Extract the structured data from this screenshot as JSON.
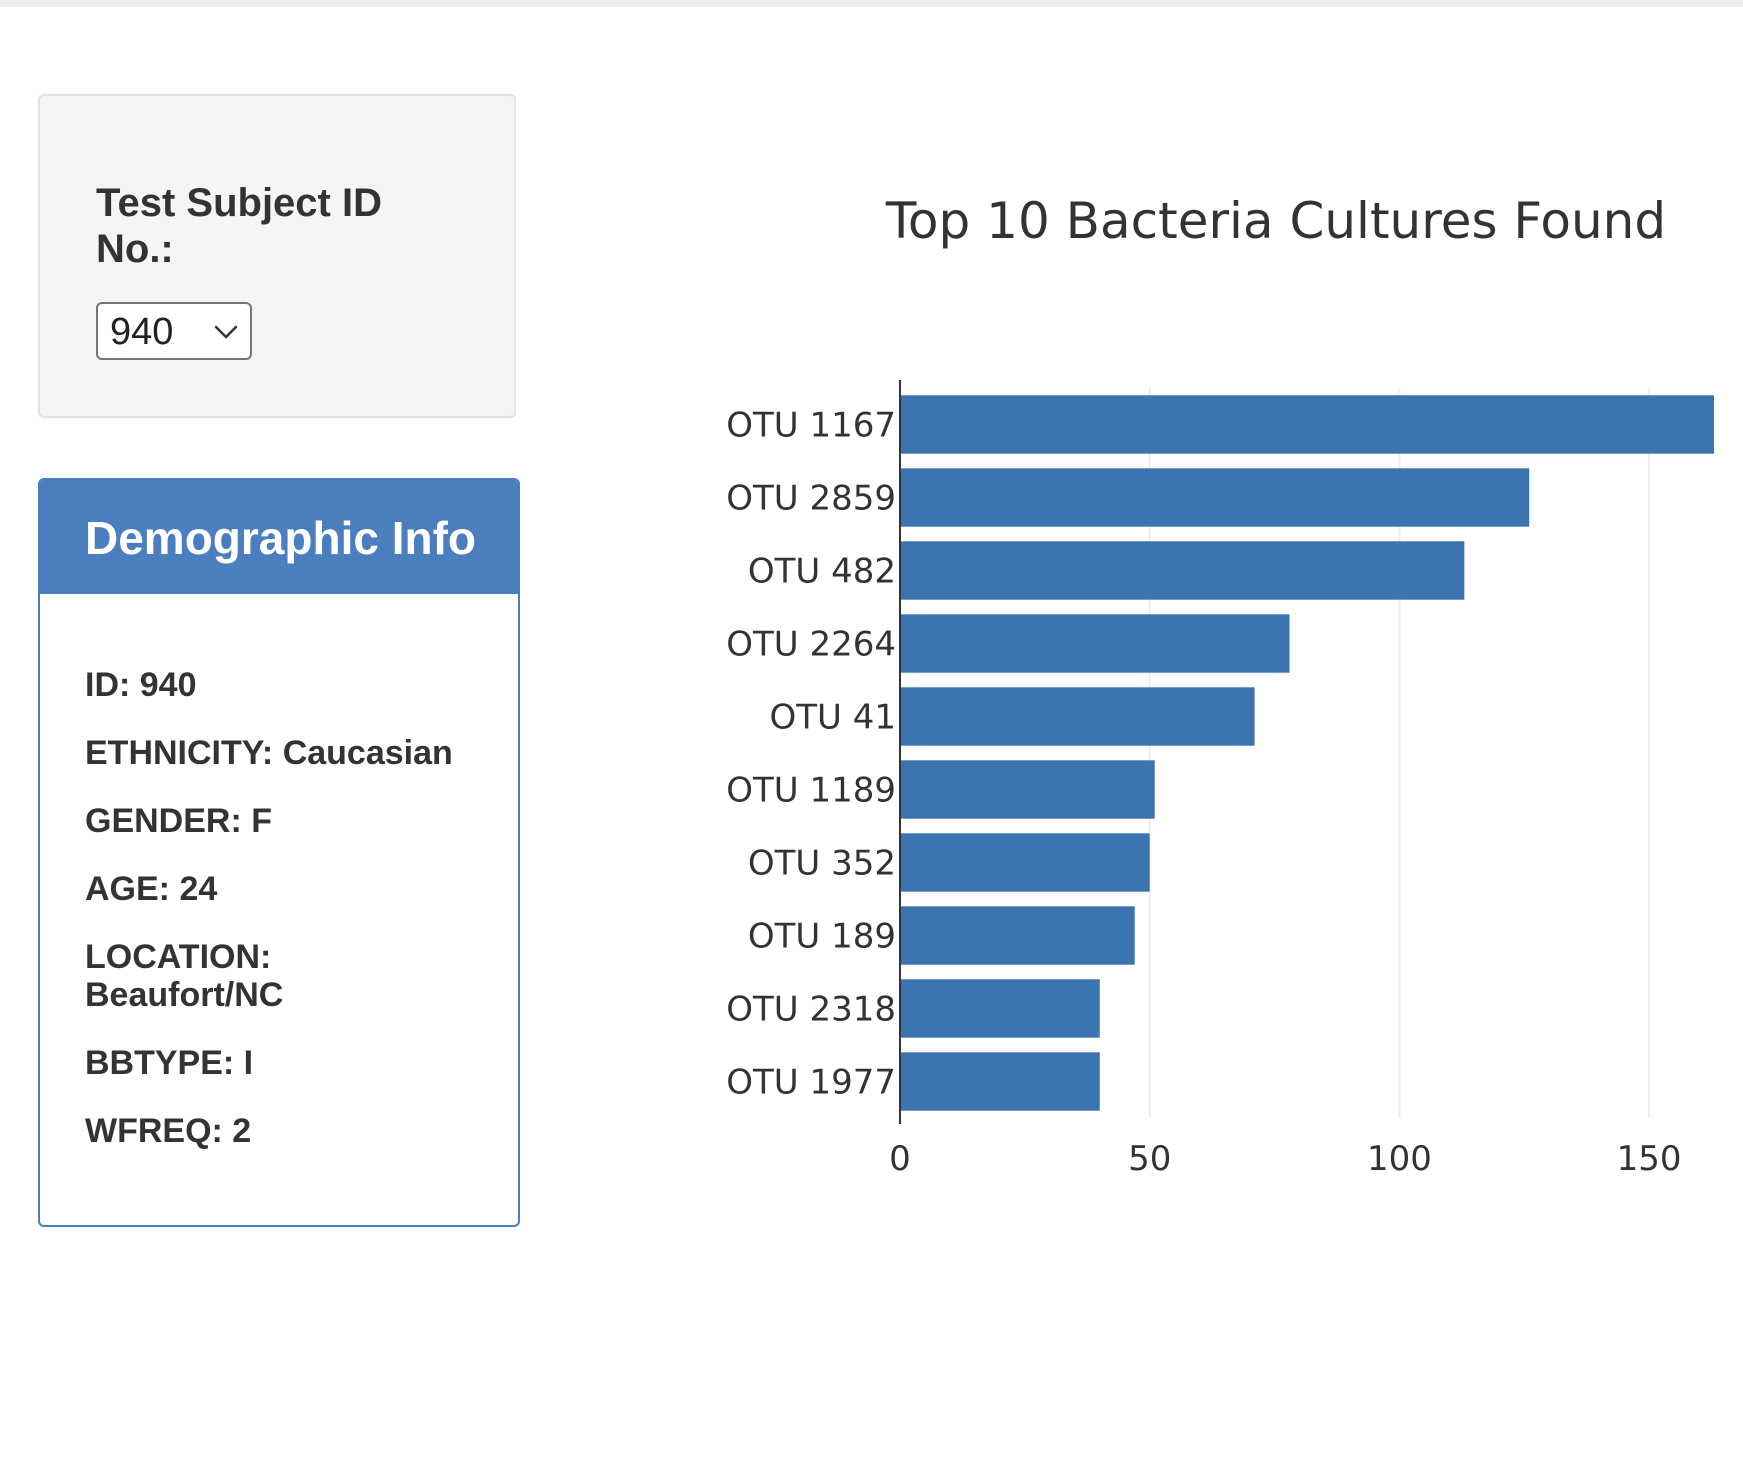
{
  "selector": {
    "label": "Test Subject ID No.:",
    "selected_value": "940"
  },
  "demographics": {
    "title": "Demographic Info",
    "lines": [
      "ID: 940",
      "ETHNICITY: Caucasian",
      "GENDER: F",
      "AGE: 24",
      "LOCATION: Beaufort/NC",
      "BBTYPE: I",
      "WFREQ: 2"
    ]
  },
  "colors": {
    "accent": "#4a7ebf",
    "bar": "#3b74b0"
  },
  "chart_data": {
    "type": "bar",
    "orientation": "horizontal",
    "title": "Top 10 Bacteria Cultures Found",
    "categories": [
      "OTU 1167",
      "OTU 2859",
      "OTU 482",
      "OTU 2264",
      "OTU 41",
      "OTU 1189",
      "OTU 352",
      "OTU 189",
      "OTU 2318",
      "OTU 1977"
    ],
    "values": [
      163,
      126,
      113,
      78,
      71,
      51,
      50,
      47,
      40,
      40
    ],
    "xlim": [
      0,
      175
    ],
    "xticks": [
      0,
      50,
      100,
      150
    ],
    "grid": true
  }
}
